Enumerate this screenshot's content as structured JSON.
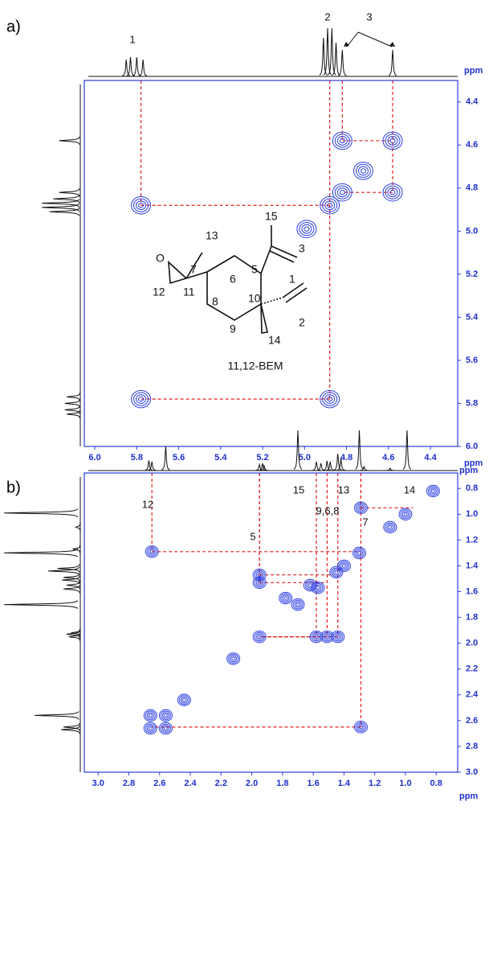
{
  "panel_labels": [
    "a)",
    "b)"
  ],
  "structure": {
    "name": "11,12-BEM",
    "atoms": [
      "O",
      "13",
      "7",
      "12",
      "11",
      "6",
      "5",
      "15",
      "3",
      "8",
      "10",
      "1",
      "9",
      "2",
      "14"
    ]
  },
  "chart_data": [
    {
      "type": "cosy",
      "x_label": "ppm",
      "y_label": "ppm",
      "xlim": [
        6.05,
        4.27
      ],
      "ylim": [
        6.0,
        4.3
      ],
      "xticks": [
        {
          "value": 6,
          "label": "6.0"
        },
        5.8,
        5.6,
        5.4,
        5.2,
        {
          "value": 5,
          "label": "5.0"
        },
        4.8,
        4.6,
        4.4
      ],
      "yticks": [
        4.4,
        4.6,
        4.8,
        {
          "value": 5,
          "label": "5.0"
        },
        5.2,
        5.4,
        5.6,
        5.8,
        {
          "value": 6,
          "label": "6.0"
        }
      ],
      "peaks": {
        "x": [
          5.78,
          4.88,
          5.78,
          4.88,
          4.82,
          4.58,
          4.82,
          4.58,
          4.72,
          4.99
        ],
        "y": [
          4.88,
          5.78,
          5.78,
          4.88,
          4.58,
          4.82,
          4.82,
          4.58,
          4.72,
          4.99
        ]
      },
      "projection": {
        "x": [
          5.85,
          5.83,
          5.8,
          5.77,
          4.91,
          4.89,
          4.87,
          4.85,
          4.82,
          4.58
        ],
        "values": [
          35,
          40,
          40,
          35,
          80,
          100,
          100,
          70,
          55,
          55
        ]
      },
      "annotations": [
        "1",
        "2",
        "3"
      ]
    },
    {
      "type": "cosy",
      "x_label": "ppm",
      "y_label": "ppm",
      "xlim": [
        3.09,
        0.66
      ],
      "ylim": [
        3.0,
        0.68
      ],
      "xticks": [
        {
          "value": 3,
          "label": "3.0"
        },
        2.8,
        2.6,
        2.4,
        2.2,
        {
          "value": 2,
          "label": "2.0"
        },
        1.8,
        1.6,
        1.4,
        1.2,
        {
          "value": 1,
          "label": "1.0"
        },
        0.8
      ],
      "yticks": [
        0.8,
        {
          "value": 1,
          "label": "1.0"
        },
        1.2,
        1.4,
        1.6,
        1.8,
        {
          "value": 2,
          "label": "2.0"
        },
        2.2,
        2.4,
        2.6,
        2.8,
        {
          "value": 3,
          "label": "3.0"
        }
      ],
      "peaks": {
        "x": [
          2.66,
          2.56,
          2.66,
          2.56,
          2.65,
          1.29,
          1.95,
          1.95,
          1.95,
          1.58,
          1.51,
          1.44,
          1.7,
          1.57,
          1.45,
          1.4,
          1.3,
          1.1,
          1.0,
          0.82,
          2.12,
          2.44,
          1.29,
          1.78,
          1.62
        ],
        "y": [
          2.56,
          2.56,
          2.66,
          2.66,
          1.29,
          2.65,
          1.95,
          1.47,
          1.53,
          1.95,
          1.95,
          1.95,
          1.7,
          1.57,
          1.45,
          1.4,
          1.3,
          1.1,
          1.0,
          0.82,
          2.12,
          2.44,
          0.95,
          1.65,
          1.55
        ]
      },
      "projection": {
        "x": [
          2.67,
          2.65,
          2.56,
          1.95,
          1.93,
          1.92,
          1.7,
          1.58,
          1.55,
          1.51,
          1.49,
          1.44,
          1.42,
          1.3,
          1.27,
          1.1,
          0.99
        ],
        "values": [
          25,
          22,
          60,
          15,
          18,
          12,
          100,
          22,
          18,
          24,
          22,
          42,
          30,
          100,
          10,
          6,
          100
        ]
      },
      "annotations": [
        "12",
        "5",
        "15",
        "9,6,8",
        "13",
        "7",
        "14"
      ]
    }
  ]
}
